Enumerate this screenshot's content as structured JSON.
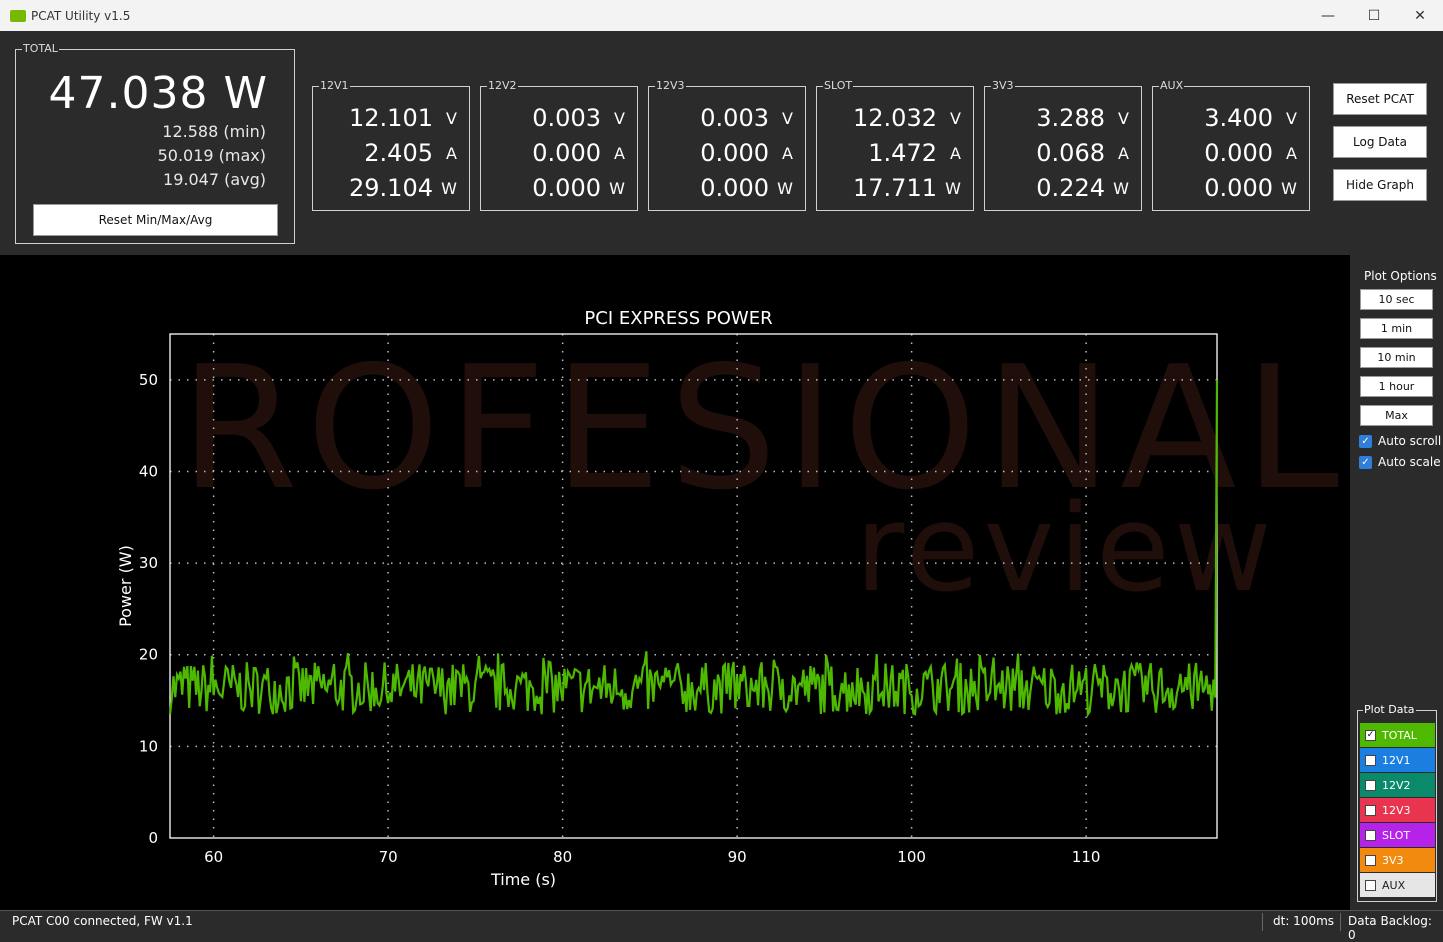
{
  "window": {
    "title": "PCAT Utility v1.5",
    "minimize": "—",
    "maximize": "☐",
    "close": "✕"
  },
  "total": {
    "legend": "TOTAL",
    "power": "47.038 W",
    "min": "12.588 (min)",
    "max": "50.019 (max)",
    "avg": "19.047 (avg)",
    "reset_label": "Reset Min/Max/Avg"
  },
  "rails": [
    {
      "name": "12V1",
      "volts": "12.101",
      "amps": "2.405",
      "watts": "29.104"
    },
    {
      "name": "12V2",
      "volts": "0.003",
      "amps": "0.000",
      "watts": "0.000"
    },
    {
      "name": "12V3",
      "volts": "0.003",
      "amps": "0.000",
      "watts": "0.000"
    },
    {
      "name": "SLOT",
      "volts": "12.032",
      "amps": "1.472",
      "watts": "17.711"
    },
    {
      "name": "3V3",
      "volts": "3.288",
      "amps": "0.068",
      "watts": "0.224"
    },
    {
      "name": "AUX",
      "volts": "3.400",
      "amps": "0.000",
      "watts": "0.000"
    }
  ],
  "units": {
    "v": "V",
    "a": "A",
    "w": "W"
  },
  "actions": {
    "reset_pcat": "Reset PCAT",
    "log_data": "Log Data",
    "hide_graph": "Hide Graph"
  },
  "plot_options": {
    "title": "Plot Options",
    "ranges": [
      "10 sec",
      "1 min",
      "10 min",
      "1 hour",
      "Max"
    ],
    "auto_scroll": "Auto scroll",
    "auto_scale": "Auto scale"
  },
  "plot_data": {
    "title": "Plot Data",
    "items": [
      {
        "label": "TOTAL",
        "color": "#4fb800",
        "checked": true
      },
      {
        "label": "12V1",
        "color": "#1a7fe0",
        "checked": false
      },
      {
        "label": "12V2",
        "color": "#0a8a6a",
        "checked": false
      },
      {
        "label": "12V3",
        "color": "#e8344e",
        "checked": false
      },
      {
        "label": "SLOT",
        "color": "#b623e8",
        "checked": false
      },
      {
        "label": "3V3",
        "color": "#f28a10",
        "checked": false
      },
      {
        "label": "AUX",
        "color": "#e6e6e6",
        "checked": false
      }
    ]
  },
  "watermark": {
    "line1": "ROFESIONAL",
    "line2": "review"
  },
  "chart_data": {
    "type": "line",
    "title": "PCI EXPRESS POWER",
    "xlabel": "Time (s)",
    "ylabel": "Power (W)",
    "xlim": [
      57.5,
      117.5
    ],
    "ylim": [
      0,
      55
    ],
    "xticks": [
      60,
      70,
      80,
      90,
      100,
      110
    ],
    "yticks": [
      0,
      10,
      20,
      30,
      40,
      50
    ],
    "grid": true,
    "line_color": "#4fb800",
    "series": [
      {
        "values_start_x": 57.5,
        "values_step_x": 0.1,
        "values_approx_range": [
          13,
          20.5
        ],
        "final_spike": [
          {
            "x": 117.4,
            "y": 16
          },
          {
            "x": 117.5,
            "y": 50
          }
        ]
      }
    ]
  },
  "status": {
    "connection": "PCAT C00 connected, FW v1.1",
    "dt": "dt: 100ms",
    "backlog": "Data Backlog: 0"
  }
}
